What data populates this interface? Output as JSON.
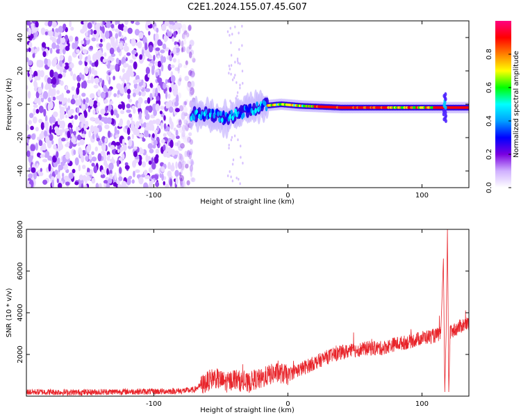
{
  "title": "C2E1.2024.155.07.45.G07",
  "chart_data": [
    {
      "type": "heatmap",
      "title": "C2E1.2024.155.07.45.G07",
      "xlabel": "Height of straight line (km)",
      "ylabel": "Frequency (Hz)",
      "xlim": [
        -195,
        135
      ],
      "ylim": [
        -50,
        50
      ],
      "x_ticks": [
        -100,
        0,
        100
      ],
      "x_tick_labels": [
        "-100",
        "0",
        "100"
      ],
      "y_ticks": [
        -40,
        -20,
        0,
        20,
        40
      ],
      "y_tick_labels": [
        "-40",
        "-20",
        "0",
        "20",
        "40"
      ],
      "grid": false,
      "colorbar": {
        "label": "Normalized spectral amplitude",
        "range": [
          0,
          1
        ],
        "ticks": [
          0.0,
          0.2,
          0.4,
          0.6,
          0.8
        ],
        "tick_labels": [
          "0.0",
          "0.2",
          "0.4",
          "0.6",
          "0.8"
        ],
        "colors": [
          "#ffffff",
          "#d0b0ff",
          "#7a00e0",
          "#0000ff",
          "#00a0ff",
          "#00ffff",
          "#00ff00",
          "#ffff00",
          "#ff8000",
          "#ff0000",
          "#ff0080"
        ]
      },
      "regions": {
        "noise_x_range": [
          -195,
          -70
        ],
        "signal_ridge": [
          {
            "x": -72,
            "y": -6
          },
          {
            "x": -60,
            "y": -6
          },
          {
            "x": -45,
            "y": -8
          },
          {
            "x": -30,
            "y": -4
          },
          {
            "x": -18,
            "y": -1
          },
          {
            "x": -5,
            "y": 0
          },
          {
            "x": 10,
            "y": -1
          },
          {
            "x": 40,
            "y": -2
          },
          {
            "x": 80,
            "y": -2
          },
          {
            "x": 110,
            "y": -2
          },
          {
            "x": 120,
            "y": -2
          },
          {
            "x": 135,
            "y": -2
          }
        ]
      }
    },
    {
      "type": "line",
      "xlabel": "Height of straight line (km)",
      "ylabel": "SNR (10 * v/v)",
      "xlim": [
        -195,
        135
      ],
      "ylim": [
        0,
        8000
      ],
      "x_ticks": [
        -100,
        0,
        100
      ],
      "x_tick_labels": [
        "-100",
        "0",
        "100"
      ],
      "y_ticks": [
        2000,
        4000,
        6000,
        8000
      ],
      "y_tick_labels": [
        "2000",
        "4000",
        "6000",
        "8000"
      ],
      "grid": false,
      "color": "#e8242a",
      "series": [
        {
          "x": [
            -195,
            -180,
            -160,
            -140,
            -120,
            -100,
            -80,
            -70,
            -60,
            -55,
            -50,
            -45,
            -40,
            -35,
            -30,
            -25,
            -20,
            -15,
            -10,
            -5,
            0,
            5,
            10,
            20,
            30,
            40,
            50,
            60,
            70,
            80,
            90,
            100,
            110,
            114,
            116,
            117,
            118,
            119,
            120,
            121,
            122,
            125,
            130,
            135
          ],
          "y": [
            200,
            200,
            180,
            200,
            220,
            220,
            250,
            300,
            700,
            900,
            750,
            650,
            850,
            700,
            600,
            800,
            800,
            1000,
            1100,
            1100,
            1000,
            1200,
            1300,
            1600,
            1900,
            2100,
            2200,
            2300,
            2300,
            2500,
            2600,
            2800,
            2900,
            3000,
            6600,
            200,
            3000,
            8000,
            200,
            3000,
            3100,
            3200,
            3400,
            3500
          ]
        }
      ]
    }
  ]
}
